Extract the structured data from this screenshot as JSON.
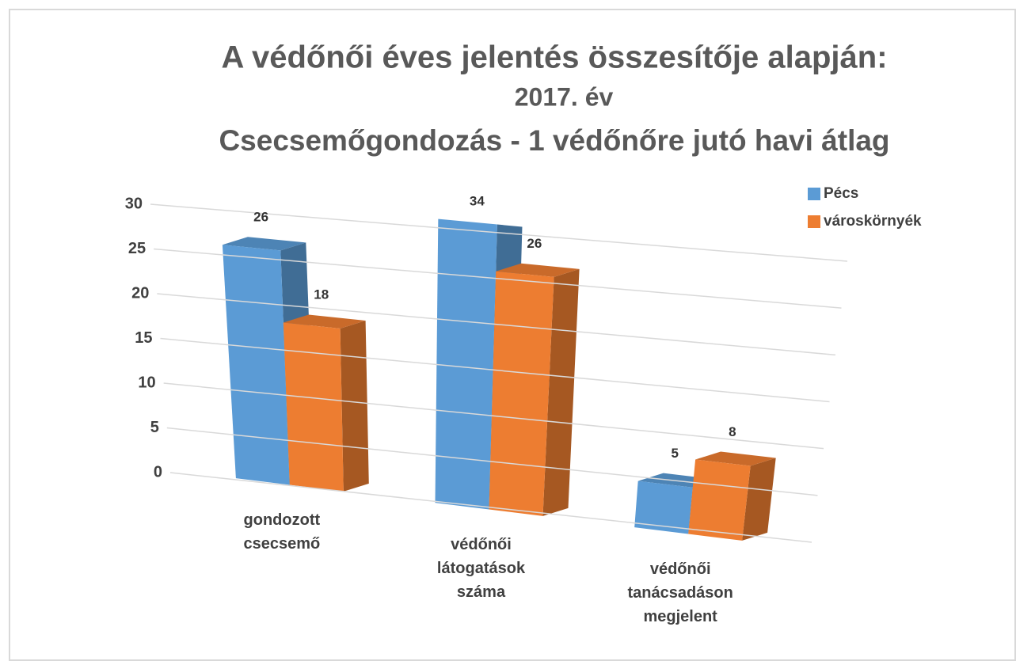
{
  "chart_data": {
    "type": "bar3d",
    "title": [
      "A védőnői éves jelentés összesítője alapján:",
      "2017. év",
      "Csecsemőgondozás - 1 védőnőre jutó havi átlag"
    ],
    "categories": [
      [
        "gondozott",
        "csecsemő"
      ],
      [
        "védőnői",
        "látogatások",
        "száma"
      ],
      [
        "védőnői",
        "tanácsadáson",
        "megjelent"
      ]
    ],
    "series": [
      {
        "name": "Pécs",
        "color": "#5b9bd5",
        "values": [
          26,
          34,
          5
        ]
      },
      {
        "name": "városkörnyék",
        "color": "#ed7d31",
        "values": [
          18,
          26,
          8
        ]
      }
    ],
    "ylim": [
      0,
      30
    ],
    "yticks": [
      0,
      5,
      10,
      15,
      20,
      25,
      30
    ],
    "grid": true,
    "legend": "top-right"
  }
}
